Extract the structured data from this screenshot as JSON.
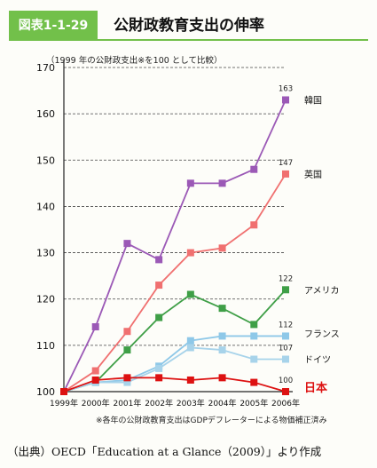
{
  "figure_label": "図表1-1-29",
  "figure_title": "公財政教育支出の伸率",
  "unit_note": "（1999 年の公財政支出※を100 として比較）",
  "footnote": "※各年の公財政教育支出はGDPデフレーターによる物価補正済み",
  "source": "（出典）OECD「Education at a Glance（2009）」より作成",
  "colors": {
    "korea": "#9b59b6",
    "uk": "#f07070",
    "usa": "#3f9f47",
    "france": "#8ec8e8",
    "germany": "#a7d3ea",
    "japan": "#dd1111",
    "grid": "#444444"
  },
  "chart_data": {
    "type": "line",
    "x": [
      "1999年",
      "2000年",
      "2001年",
      "2002年",
      "2003年",
      "2004年",
      "2005年",
      "2006年"
    ],
    "ylim": [
      100,
      170
    ],
    "yticks": [
      100,
      110,
      120,
      130,
      140,
      150,
      160,
      170
    ],
    "grid": "horizontal-dashed",
    "series": [
      {
        "name": "韓国",
        "key": "korea",
        "values": [
          100,
          114,
          132,
          128.5,
          145,
          145,
          148,
          163
        ],
        "end_label": "163"
      },
      {
        "name": "英国",
        "key": "uk",
        "values": [
          100,
          104.5,
          113,
          123,
          130,
          131,
          136,
          147
        ],
        "end_label": "147"
      },
      {
        "name": "アメリカ",
        "key": "usa",
        "values": [
          100,
          102,
          109,
          116,
          121,
          118,
          114.5,
          122
        ],
        "end_label": "122"
      },
      {
        "name": "フランス",
        "key": "france",
        "values": [
          100,
          102,
          102.5,
          105.5,
          111,
          112,
          112,
          112
        ],
        "end_label": "112"
      },
      {
        "name": "ドイツ",
        "key": "germany",
        "values": [
          100,
          102,
          102,
          105,
          109.5,
          109,
          107,
          107
        ],
        "end_label": "107"
      },
      {
        "name": "日本",
        "key": "japan",
        "values": [
          100,
          102.5,
          103,
          103,
          102.5,
          103,
          102,
          100
        ],
        "end_label": "100"
      }
    ]
  }
}
